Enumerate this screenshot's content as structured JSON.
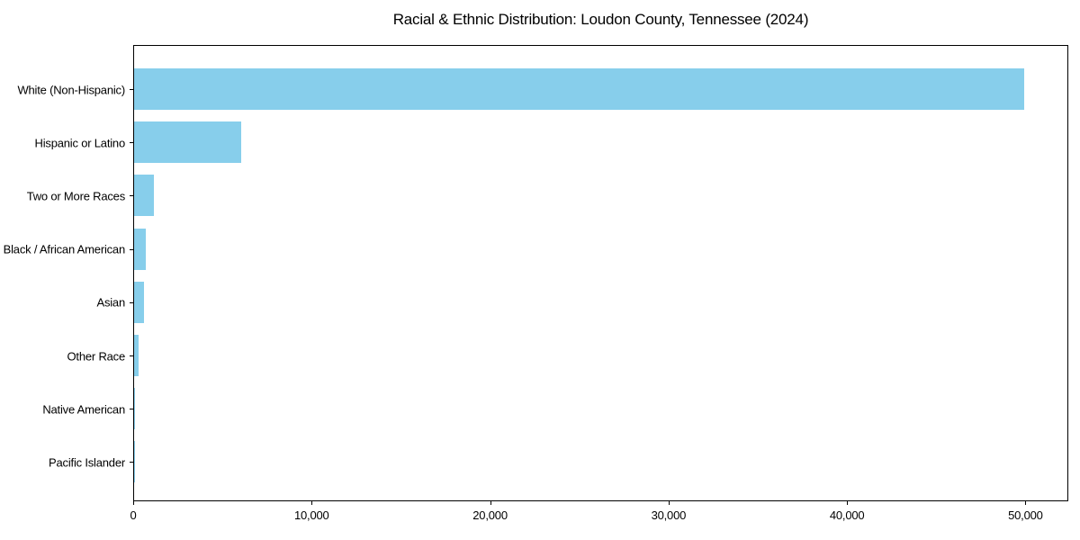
{
  "chart_data": {
    "type": "bar",
    "orientation": "horizontal",
    "title": "Racial & Ethnic Distribution: Loudon County, Tennessee (2024)",
    "categories": [
      "White (Non-Hispanic)",
      "Hispanic or Latino",
      "Two or More Races",
      "Black / African American",
      "Asian",
      "Other Race",
      "Native American",
      "Pacific Islander"
    ],
    "values": [
      49900,
      6000,
      1100,
      660,
      550,
      230,
      50,
      20
    ],
    "xlabel": "",
    "ylabel": "",
    "xlim": [
      0,
      52400
    ],
    "xticks": [
      0,
      10000,
      20000,
      30000,
      40000,
      50000
    ],
    "xtick_labels": [
      "0",
      "10,000",
      "20,000",
      "30,000",
      "40,000",
      "50,000"
    ],
    "bar_color": "#87CEEB",
    "grid": false,
    "legend": null,
    "plot_border_color": "#000000",
    "background_color": "#ffffff"
  }
}
